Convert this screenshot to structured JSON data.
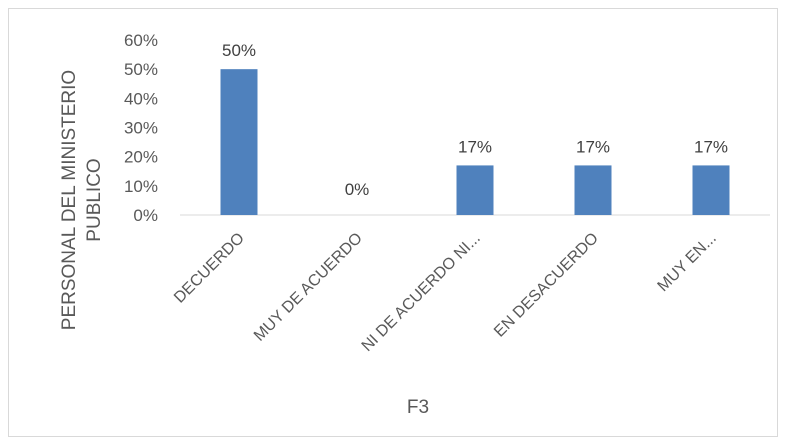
{
  "chart_data": {
    "type": "bar",
    "title": "",
    "xlabel": "F3",
    "ylabel": [
      "PERSONAL DEL MINISTERIO",
      "PUBLICO"
    ],
    "categories": [
      "DECUERDO",
      "MUY DE ACUERDO",
      "NI DE ACUERDO NI...",
      "EN DESACUERDO",
      "MUY EN..."
    ],
    "values": [
      50,
      0,
      17,
      17,
      17
    ],
    "value_labels": [
      "50%",
      "0%",
      "17%",
      "17%",
      "17%"
    ],
    "ylim": [
      0,
      60
    ],
    "yticks": [
      "0%",
      "10%",
      "20%",
      "30%",
      "40%",
      "50%",
      "60%"
    ],
    "grid": false,
    "legend": "none",
    "bar_color": "#4f81bd"
  }
}
